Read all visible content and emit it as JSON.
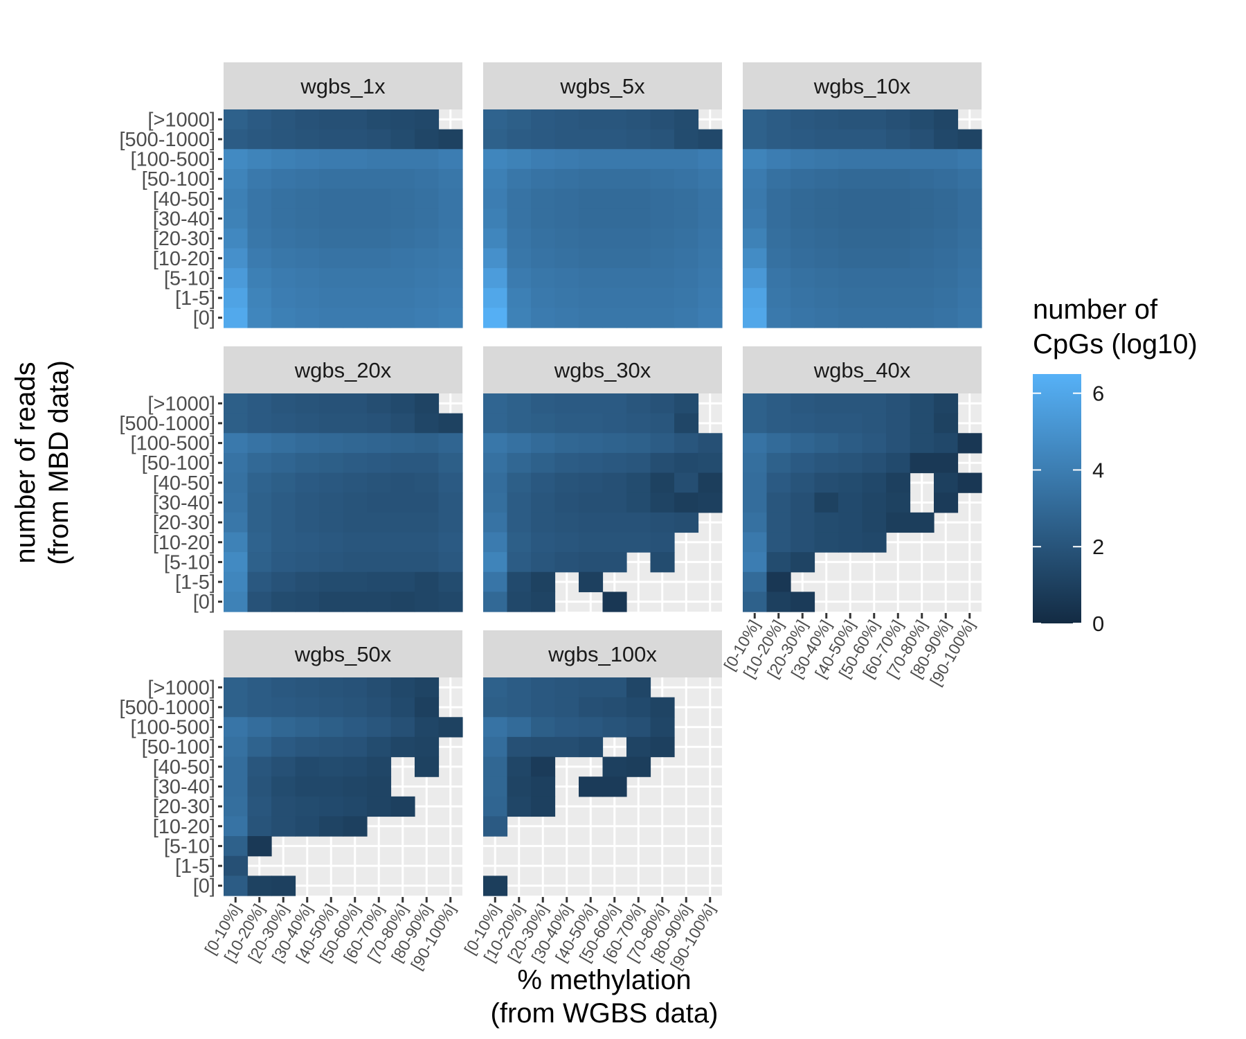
{
  "chart_data": {
    "type": "heatmap",
    "title": "",
    "xlabel_lines": [
      "% methylation",
      "(from WGBS data)"
    ],
    "ylabel_lines": [
      "number of reads",
      "(from MBD data)"
    ],
    "x_categories": [
      "[0-10%]",
      "[10-20%]",
      "[20-30%]",
      "[30-40%]",
      "[40-50%]",
      "[50-60%]",
      "[60-70%]",
      "[70-80%]",
      "[80-90%]",
      "[90-100%]"
    ],
    "y_categories": [
      "[0]",
      "[1-5]",
      "[5-10]",
      "[10-20]",
      "[20-30]",
      "[30-40]",
      "[40-50]",
      "[50-100]",
      "[100-500]",
      "[500-1000]",
      "[>1000]"
    ],
    "legend": {
      "title_lines": [
        "number of",
        "CpGs (log10)"
      ],
      "ticks": [
        0,
        2,
        4,
        6
      ],
      "range": [
        0,
        6.5
      ],
      "color_low": "#132B43",
      "color_high": "#56B1F7",
      "placement": "right"
    },
    "panel_background": "#EBEBEB",
    "strip_background": "#D9D9D9",
    "grid": true,
    "panels_note": "matrix rows ordered top-to-bottom from [>1000] to [0]; columns [0-10%] to [90-100%]; null = no CpGs",
    "panels": [
      {
        "name": "wgbs_1x",
        "matrix": [
          [
            2.6,
            2.3,
            2.1,
            1.9,
            1.8,
            1.8,
            1.6,
            1.5,
            1.4,
            null
          ],
          [
            2.4,
            2.2,
            2.1,
            2.0,
            1.9,
            1.9,
            1.8,
            1.6,
            1.3,
            1.1
          ],
          [
            4.6,
            4.3,
            4.1,
            4.0,
            3.9,
            3.9,
            3.8,
            3.8,
            3.8,
            4.0
          ],
          [
            4.3,
            3.8,
            3.6,
            3.5,
            3.4,
            3.4,
            3.4,
            3.4,
            3.5,
            3.7
          ],
          [
            4.1,
            3.6,
            3.4,
            3.3,
            3.2,
            3.2,
            3.2,
            3.3,
            3.4,
            3.6
          ],
          [
            4.2,
            3.6,
            3.4,
            3.3,
            3.2,
            3.2,
            3.2,
            3.3,
            3.4,
            3.6
          ],
          [
            4.5,
            3.7,
            3.5,
            3.4,
            3.3,
            3.3,
            3.3,
            3.4,
            3.5,
            3.7
          ],
          [
            4.9,
            3.9,
            3.7,
            3.6,
            3.5,
            3.5,
            3.5,
            3.6,
            3.7,
            3.8
          ],
          [
            5.4,
            4.1,
            3.9,
            3.8,
            3.7,
            3.7,
            3.7,
            3.7,
            3.8,
            3.9
          ],
          [
            5.8,
            4.3,
            4.0,
            3.9,
            3.8,
            3.8,
            3.8,
            3.8,
            3.9,
            4.0
          ],
          [
            6.1,
            4.4,
            4.1,
            4.0,
            3.9,
            3.9,
            3.9,
            3.9,
            4.0,
            4.1
          ]
        ]
      },
      {
        "name": "wgbs_5x",
        "matrix": [
          [
            2.7,
            2.5,
            2.3,
            2.2,
            2.1,
            2.1,
            2.0,
            1.8,
            1.6,
            null
          ],
          [
            2.6,
            2.4,
            2.3,
            2.2,
            2.2,
            2.2,
            2.1,
            2.0,
            1.6,
            1.4
          ],
          [
            4.4,
            4.2,
            4.0,
            3.9,
            3.8,
            3.8,
            3.8,
            3.8,
            3.8,
            4.0
          ],
          [
            4.1,
            3.7,
            3.5,
            3.4,
            3.3,
            3.3,
            3.3,
            3.4,
            3.5,
            3.7
          ],
          [
            4.0,
            3.5,
            3.3,
            3.2,
            3.1,
            3.1,
            3.1,
            3.2,
            3.3,
            3.5
          ],
          [
            4.1,
            3.5,
            3.3,
            3.2,
            3.1,
            3.1,
            3.1,
            3.2,
            3.3,
            3.5
          ],
          [
            4.4,
            3.6,
            3.4,
            3.3,
            3.2,
            3.2,
            3.2,
            3.3,
            3.4,
            3.6
          ],
          [
            4.9,
            3.7,
            3.5,
            3.4,
            3.3,
            3.3,
            3.3,
            3.4,
            3.5,
            3.7
          ],
          [
            5.5,
            3.9,
            3.7,
            3.6,
            3.5,
            3.5,
            3.5,
            3.5,
            3.6,
            3.8
          ],
          [
            6.0,
            4.1,
            3.8,
            3.7,
            3.6,
            3.6,
            3.6,
            3.6,
            3.7,
            3.9
          ],
          [
            6.4,
            4.2,
            3.9,
            3.8,
            3.7,
            3.7,
            3.7,
            3.7,
            3.8,
            4.0
          ]
        ]
      },
      {
        "name": "wgbs_10x",
        "matrix": [
          [
            2.6,
            2.4,
            2.2,
            2.1,
            2.0,
            2.0,
            1.8,
            1.6,
            1.3,
            null
          ],
          [
            2.6,
            2.4,
            2.3,
            2.2,
            2.2,
            2.2,
            2.0,
            1.8,
            1.4,
            1.2
          ],
          [
            4.3,
            4.0,
            3.8,
            3.7,
            3.6,
            3.6,
            3.6,
            3.6,
            3.6,
            3.8
          ],
          [
            3.9,
            3.4,
            3.2,
            3.1,
            3.0,
            3.0,
            3.0,
            3.1,
            3.2,
            3.4
          ],
          [
            3.8,
            3.2,
            3.0,
            2.9,
            2.8,
            2.8,
            2.8,
            2.9,
            3.0,
            3.2
          ],
          [
            3.9,
            3.2,
            3.0,
            2.9,
            2.8,
            2.8,
            2.8,
            2.9,
            3.0,
            3.2
          ],
          [
            4.2,
            3.3,
            3.1,
            3.0,
            2.9,
            2.9,
            2.9,
            3.0,
            3.1,
            3.3
          ],
          [
            4.7,
            3.4,
            3.2,
            3.1,
            3.0,
            3.0,
            3.0,
            3.1,
            3.2,
            3.4
          ],
          [
            5.3,
            3.6,
            3.4,
            3.3,
            3.2,
            3.2,
            3.2,
            3.2,
            3.3,
            3.5
          ],
          [
            5.8,
            3.7,
            3.5,
            3.4,
            3.3,
            3.3,
            3.3,
            3.3,
            3.4,
            3.6
          ],
          [
            6.0,
            3.8,
            3.6,
            3.5,
            3.4,
            3.4,
            3.4,
            3.4,
            3.5,
            3.7
          ]
        ]
      },
      {
        "name": "wgbs_20x",
        "matrix": [
          [
            2.5,
            2.3,
            2.1,
            2.0,
            1.9,
            1.9,
            1.7,
            1.5,
            1.2,
            null
          ],
          [
            2.5,
            2.3,
            2.2,
            2.1,
            2.0,
            2.0,
            1.9,
            1.7,
            1.3,
            1.1
          ],
          [
            3.8,
            3.5,
            3.3,
            3.1,
            3.0,
            2.9,
            2.8,
            2.7,
            2.6,
            2.8
          ],
          [
            3.5,
            3.0,
            2.8,
            2.6,
            2.5,
            2.4,
            2.3,
            2.2,
            2.2,
            2.5
          ],
          [
            3.4,
            2.7,
            2.5,
            2.3,
            2.2,
            2.1,
            2.0,
            1.9,
            2.0,
            2.3
          ],
          [
            3.5,
            2.6,
            2.4,
            2.2,
            2.1,
            2.0,
            1.9,
            1.9,
            1.9,
            2.2
          ],
          [
            3.7,
            2.6,
            2.4,
            2.2,
            2.1,
            2.0,
            2.0,
            2.0,
            2.0,
            2.2
          ],
          [
            4.2,
            2.7,
            2.4,
            2.3,
            2.2,
            2.1,
            2.1,
            2.1,
            2.1,
            2.3
          ],
          [
            4.6,
            2.6,
            2.3,
            2.2,
            2.1,
            2.0,
            2.0,
            2.0,
            2.0,
            2.2
          ],
          [
            4.4,
            2.2,
            1.9,
            1.7,
            1.6,
            1.6,
            1.5,
            1.5,
            1.3,
            1.6
          ],
          [
            4.2,
            1.9,
            1.6,
            1.5,
            1.3,
            1.3,
            1.3,
            1.2,
            1.3,
            1.4
          ]
        ]
      },
      {
        "name": "wgbs_30x",
        "matrix": [
          [
            2.8,
            2.6,
            2.4,
            2.3,
            2.3,
            2.3,
            2.1,
            1.9,
            1.6,
            null
          ],
          [
            2.8,
            2.6,
            2.5,
            2.4,
            2.4,
            2.3,
            2.2,
            2.1,
            1.3,
            null
          ],
          [
            3.7,
            3.4,
            3.1,
            2.9,
            2.8,
            2.7,
            2.6,
            2.4,
            2.1,
            1.8
          ],
          [
            3.4,
            2.9,
            2.6,
            2.4,
            2.3,
            2.2,
            2.1,
            1.7,
            1.5,
            1.6
          ],
          [
            3.2,
            2.5,
            2.2,
            2.0,
            1.9,
            1.8,
            1.6,
            1.1,
            1.7,
            0.9
          ],
          [
            3.3,
            2.4,
            2.1,
            1.9,
            1.8,
            1.8,
            1.6,
            1.2,
            0.9,
            1.0
          ],
          [
            3.5,
            2.4,
            2.1,
            2.0,
            1.9,
            1.9,
            1.9,
            1.8,
            1.7,
            null
          ],
          [
            3.9,
            2.5,
            2.2,
            2.1,
            2.0,
            2.0,
            2.0,
            1.9,
            null,
            null
          ],
          [
            4.3,
            2.4,
            2.1,
            1.9,
            1.8,
            1.8,
            null,
            1.6,
            null,
            null
          ],
          [
            3.6,
            1.5,
            1.1,
            null,
            1.0,
            null,
            null,
            null,
            null,
            null
          ],
          [
            3.0,
            1.4,
            1.2,
            null,
            null,
            0.6,
            null,
            null,
            null,
            null
          ]
        ]
      },
      {
        "name": "wgbs_40x",
        "matrix": [
          [
            2.6,
            2.4,
            2.2,
            2.1,
            2.1,
            2.1,
            1.9,
            1.6,
            1.2,
            null
          ],
          [
            2.6,
            2.4,
            2.3,
            2.2,
            2.2,
            2.1,
            1.9,
            1.6,
            1.1,
            null
          ],
          [
            3.5,
            3.1,
            2.8,
            2.6,
            2.4,
            2.2,
            1.9,
            1.6,
            1.4,
            0.6
          ],
          [
            3.3,
            2.6,
            2.3,
            2.1,
            2.0,
            1.8,
            1.5,
            0.7,
            0.7,
            null
          ],
          [
            3.2,
            2.3,
            2.0,
            1.7,
            1.6,
            1.4,
            1.0,
            null,
            1.0,
            0.6
          ],
          [
            3.2,
            2.1,
            1.8,
            1.1,
            1.5,
            1.3,
            1.1,
            null,
            0.8,
            null
          ],
          [
            3.4,
            2.1,
            1.8,
            1.6,
            1.5,
            1.3,
            0.9,
            0.9,
            null,
            null
          ],
          [
            3.8,
            2.1,
            1.8,
            1.6,
            1.5,
            1.4,
            null,
            null,
            null,
            null
          ],
          [
            4.0,
            1.6,
            1.2,
            null,
            null,
            null,
            null,
            null,
            null,
            null
          ],
          [
            3.1,
            0.6,
            null,
            null,
            null,
            null,
            null,
            null,
            null,
            null
          ],
          [
            2.6,
            1.0,
            0.8,
            null,
            null,
            null,
            null,
            null,
            null,
            null
          ]
        ]
      },
      {
        "name": "wgbs_50x",
        "matrix": [
          [
            2.6,
            2.4,
            2.2,
            2.1,
            2.0,
            1.9,
            1.7,
            1.4,
            1.2,
            null
          ],
          [
            2.6,
            2.4,
            2.3,
            2.2,
            2.1,
            2.0,
            1.8,
            1.5,
            1.0,
            null
          ],
          [
            3.6,
            3.2,
            2.9,
            2.7,
            2.5,
            2.3,
            2.1,
            1.8,
            1.3,
            1.1
          ],
          [
            3.4,
            2.7,
            2.3,
            2.1,
            2.0,
            1.9,
            1.6,
            1.3,
            1.2,
            null
          ],
          [
            3.2,
            2.1,
            1.8,
            1.5,
            1.6,
            1.5,
            1.3,
            null,
            1.1,
            null
          ],
          [
            3.2,
            2.0,
            1.6,
            1.4,
            1.4,
            1.3,
            1.2,
            null,
            null,
            null
          ],
          [
            3.3,
            2.1,
            1.7,
            1.6,
            1.5,
            1.4,
            1.2,
            1.0,
            null,
            null
          ],
          [
            3.5,
            2.0,
            1.7,
            1.5,
            1.2,
            1.0,
            null,
            null,
            null,
            null
          ],
          [
            2.6,
            0.7,
            null,
            null,
            null,
            null,
            null,
            null,
            null,
            null
          ],
          [
            1.8,
            null,
            null,
            null,
            null,
            null,
            null,
            null,
            null,
            null
          ],
          [
            2.4,
            1.1,
            1.0,
            null,
            null,
            null,
            null,
            null,
            null,
            null
          ]
        ]
      },
      {
        "name": "wgbs_100x",
        "matrix": [
          [
            2.6,
            2.4,
            2.2,
            2.1,
            2.0,
            2.0,
            1.3,
            null,
            null,
            null
          ],
          [
            2.5,
            2.4,
            2.2,
            2.1,
            1.8,
            1.7,
            1.5,
            1.2,
            null,
            null
          ],
          [
            3.5,
            3.1,
            2.5,
            2.3,
            2.2,
            2.0,
            1.8,
            1.3,
            null,
            null
          ],
          [
            3.2,
            1.8,
            1.7,
            1.7,
            1.5,
            null,
            1.2,
            1.0,
            null,
            null
          ],
          [
            2.9,
            1.3,
            0.8,
            null,
            null,
            1.0,
            0.9,
            null,
            null,
            null
          ],
          [
            2.9,
            1.2,
            1.0,
            null,
            0.8,
            0.8,
            null,
            null,
            null,
            null
          ],
          [
            2.8,
            1.3,
            1.0,
            null,
            null,
            null,
            null,
            null,
            null,
            null
          ],
          [
            2.3,
            null,
            null,
            null,
            null,
            null,
            null,
            null,
            null,
            null
          ],
          [
            null,
            null,
            null,
            null,
            null,
            null,
            null,
            null,
            null,
            null
          ],
          [
            null,
            null,
            null,
            null,
            null,
            null,
            null,
            null,
            null,
            null
          ],
          [
            0.9,
            null,
            null,
            null,
            null,
            null,
            null,
            null,
            null,
            null
          ]
        ]
      }
    ]
  }
}
